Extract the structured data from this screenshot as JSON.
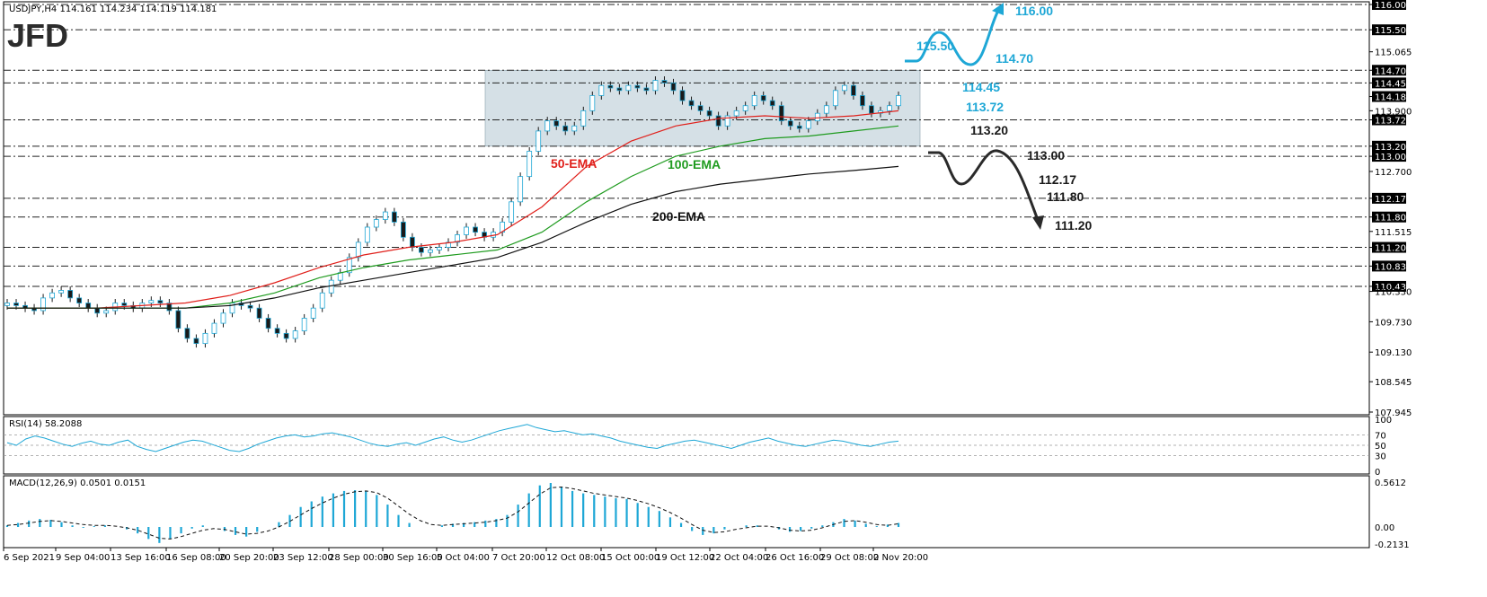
{
  "chart_data": {
    "type": "candlestick",
    "symbol_header": "USDJPY,H4  114.161 114.234 114.119 114.181",
    "logo": "JFD",
    "current_price_label": "114.181",
    "x_tick_labels": [
      "6 Sep 2021",
      "9 Sep 04:00",
      "13 Sep 16:00",
      "16 Sep 08:00",
      "20 Sep 20:00",
      "23 Sep 12:00",
      "28 Sep 00:00",
      "30 Sep 16:00",
      "5 Oct 04:00",
      "7 Oct 20:00",
      "12 Oct 08:00",
      "15 Oct 00:00",
      "19 Oct 12:00",
      "22 Oct 04:00",
      "26 Oct 16:00",
      "29 Oct 08:00",
      "2 Nov 20:00"
    ],
    "price_axis": {
      "ylim": [
        107.945,
        116.0
      ],
      "tick_labels": [
        "116.000",
        "115.500",
        "115.065",
        "114.700",
        "114.450",
        "114.181",
        "113.900",
        "113.720",
        "113.200",
        "113.000",
        "112.700",
        "112.170",
        "111.800",
        "111.515",
        "111.200",
        "110.830",
        "110.430",
        "110.330",
        "109.730",
        "109.130",
        "108.545",
        "107.945"
      ],
      "tick_values": [
        116.0,
        115.5,
        115.065,
        114.7,
        114.45,
        114.181,
        113.9,
        113.72,
        113.2,
        113.0,
        112.7,
        112.17,
        111.8,
        111.515,
        111.2,
        110.83,
        110.43,
        110.33,
        109.73,
        109.13,
        108.545,
        107.945
      ],
      "highlighted": [
        "116.000",
        "115.500",
        "114.700",
        "114.450",
        "114.181",
        "113.720",
        "113.200",
        "113.000",
        "112.170",
        "111.800",
        "111.200",
        "110.830",
        "110.430"
      ]
    },
    "horizontal_levels": [
      116.0,
      115.5,
      114.7,
      114.45,
      113.72,
      113.2,
      113.0,
      112.17,
      111.8,
      111.2,
      110.83,
      110.43
    ],
    "range_box": {
      "top": 114.7,
      "bottom": 113.2
    },
    "close_series": [
      110.1,
      110.05,
      110.0,
      109.95,
      110.2,
      110.3,
      110.35,
      110.2,
      110.1,
      110.0,
      109.9,
      109.95,
      110.1,
      110.05,
      110.0,
      110.1,
      110.15,
      110.1,
      109.95,
      109.6,
      109.4,
      109.3,
      109.5,
      109.7,
      109.9,
      110.1,
      110.05,
      110.0,
      109.8,
      109.6,
      109.5,
      109.4,
      109.55,
      109.8,
      110.0,
      110.3,
      110.55,
      110.7,
      111.0,
      111.3,
      111.6,
      111.75,
      111.9,
      111.7,
      111.4,
      111.2,
      111.1,
      111.15,
      111.2,
      111.3,
      111.45,
      111.6,
      111.5,
      111.4,
      111.5,
      111.7,
      112.1,
      112.6,
      113.1,
      113.5,
      113.7,
      113.6,
      113.5,
      113.6,
      113.9,
      114.2,
      114.4,
      114.35,
      114.3,
      114.4,
      114.35,
      114.3,
      114.5,
      114.45,
      114.3,
      114.1,
      114.0,
      113.9,
      113.8,
      113.6,
      113.8,
      113.9,
      114.0,
      114.2,
      114.1,
      114.0,
      113.7,
      113.6,
      113.55,
      113.7,
      113.85,
      114.0,
      114.3,
      114.4,
      114.2,
      114.0,
      113.85,
      113.9,
      114.0,
      114.2
    ],
    "emas": [
      {
        "name": "50-EMA",
        "color": "#e0201b",
        "values": [
          110.0,
          110.0,
          110.0,
          110.05,
          110.1,
          110.25,
          110.5,
          110.8,
          111.05,
          111.2,
          111.3,
          111.45,
          112.0,
          112.8,
          113.3,
          113.6,
          113.75,
          113.8,
          113.75,
          113.8,
          113.9
        ]
      },
      {
        "name": "100-EMA",
        "color": "#1f9b1f",
        "values": [
          110.0,
          110.0,
          110.0,
          110.0,
          110.0,
          110.1,
          110.3,
          110.6,
          110.8,
          110.95,
          111.05,
          111.15,
          111.5,
          112.1,
          112.6,
          113.0,
          113.2,
          113.35,
          113.4,
          113.5,
          113.6
        ]
      },
      {
        "name": "200-EMA",
        "color": "#111111",
        "values": [
          110.0,
          110.0,
          110.0,
          110.0,
          110.0,
          110.05,
          110.2,
          110.4,
          110.55,
          110.7,
          110.85,
          111.0,
          111.3,
          111.7,
          112.05,
          112.3,
          112.45,
          112.55,
          112.65,
          112.72,
          112.8
        ]
      }
    ],
    "annotations_blue": [
      "115.50",
      "116.00",
      "114.70",
      "114.45",
      "113.72"
    ],
    "annotations_dark": [
      "113.20",
      "113.00",
      "112.17",
      "111.80",
      "111.20"
    ],
    "rsi": {
      "header": "RSI(14) 58.2088",
      "ylim": [
        0,
        100
      ],
      "tick_labels": [
        "100",
        "70",
        "50",
        "30",
        "0"
      ],
      "levels": [
        70,
        50,
        30
      ],
      "values": [
        55,
        50,
        62,
        68,
        64,
        58,
        52,
        48,
        54,
        58,
        52,
        50,
        56,
        60,
        48,
        42,
        38,
        44,
        50,
        56,
        60,
        58,
        52,
        46,
        40,
        38,
        44,
        52,
        58,
        64,
        68,
        70,
        66,
        68,
        72,
        74,
        70,
        66,
        60,
        54,
        50,
        48,
        52,
        55,
        50,
        56,
        62,
        66,
        60,
        56,
        60,
        66,
        72,
        78,
        82,
        86,
        90,
        84,
        80,
        76,
        78,
        74,
        70,
        72,
        68,
        64,
        58,
        54,
        50,
        46,
        44,
        50,
        54,
        58,
        60,
        56,
        52,
        48,
        44,
        50,
        56,
        60,
        64,
        58,
        54,
        50,
        48,
        52,
        56,
        60,
        58,
        54,
        50,
        48,
        52,
        56,
        58
      ]
    },
    "macd": {
      "header": "MACD(12,26,9) 0.0501 0.0151",
      "ylim": [
        -0.2131,
        0.5612
      ],
      "tick_labels": [
        "0.5612",
        "0.00",
        "-0.2131"
      ],
      "histogram": [
        0.02,
        0.05,
        0.08,
        0.1,
        0.09,
        0.06,
        0.02,
        -0.01,
        0.01,
        0.02,
        0.0,
        -0.03,
        -0.08,
        -0.15,
        -0.2,
        -0.15,
        -0.08,
        -0.02,
        0.02,
        0.0,
        -0.05,
        -0.1,
        -0.12,
        -0.06,
        0.0,
        0.06,
        0.15,
        0.25,
        0.32,
        0.38,
        0.42,
        0.45,
        0.46,
        0.45,
        0.4,
        0.28,
        0.15,
        0.05,
        0.0,
        0.0,
        0.02,
        0.04,
        0.05,
        0.06,
        0.08,
        0.1,
        0.15,
        0.28,
        0.42,
        0.52,
        0.55,
        0.5,
        0.45,
        0.42,
        0.4,
        0.38,
        0.36,
        0.35,
        0.3,
        0.25,
        0.2,
        0.12,
        0.05,
        -0.05,
        -0.1,
        -0.08,
        -0.03,
        0.0,
        0.02,
        0.02,
        0.0,
        -0.03,
        -0.06,
        -0.05,
        -0.02,
        0.02,
        0.06,
        0.1,
        0.08,
        0.04,
        0.01,
        0.03,
        0.05
      ],
      "signal": [
        0.02,
        0.03,
        0.05,
        0.07,
        0.08,
        0.07,
        0.05,
        0.03,
        0.02,
        0.02,
        0.01,
        -0.01,
        -0.04,
        -0.09,
        -0.14,
        -0.15,
        -0.12,
        -0.08,
        -0.04,
        -0.02,
        -0.03,
        -0.06,
        -0.09,
        -0.08,
        -0.05,
        0.0,
        0.07,
        0.15,
        0.23,
        0.3,
        0.36,
        0.41,
        0.44,
        0.45,
        0.43,
        0.36,
        0.26,
        0.16,
        0.08,
        0.03,
        0.02,
        0.03,
        0.04,
        0.05,
        0.06,
        0.08,
        0.11,
        0.19,
        0.3,
        0.41,
        0.49,
        0.5,
        0.48,
        0.45,
        0.42,
        0.4,
        0.38,
        0.36,
        0.33,
        0.29,
        0.24,
        0.18,
        0.11,
        0.03,
        -0.04,
        -0.07,
        -0.06,
        -0.03,
        -0.01,
        0.01,
        0.01,
        -0.01,
        -0.04,
        -0.05,
        -0.04,
        -0.01,
        0.03,
        0.07,
        0.08,
        0.06,
        0.03,
        0.02,
        0.04
      ]
    }
  }
}
